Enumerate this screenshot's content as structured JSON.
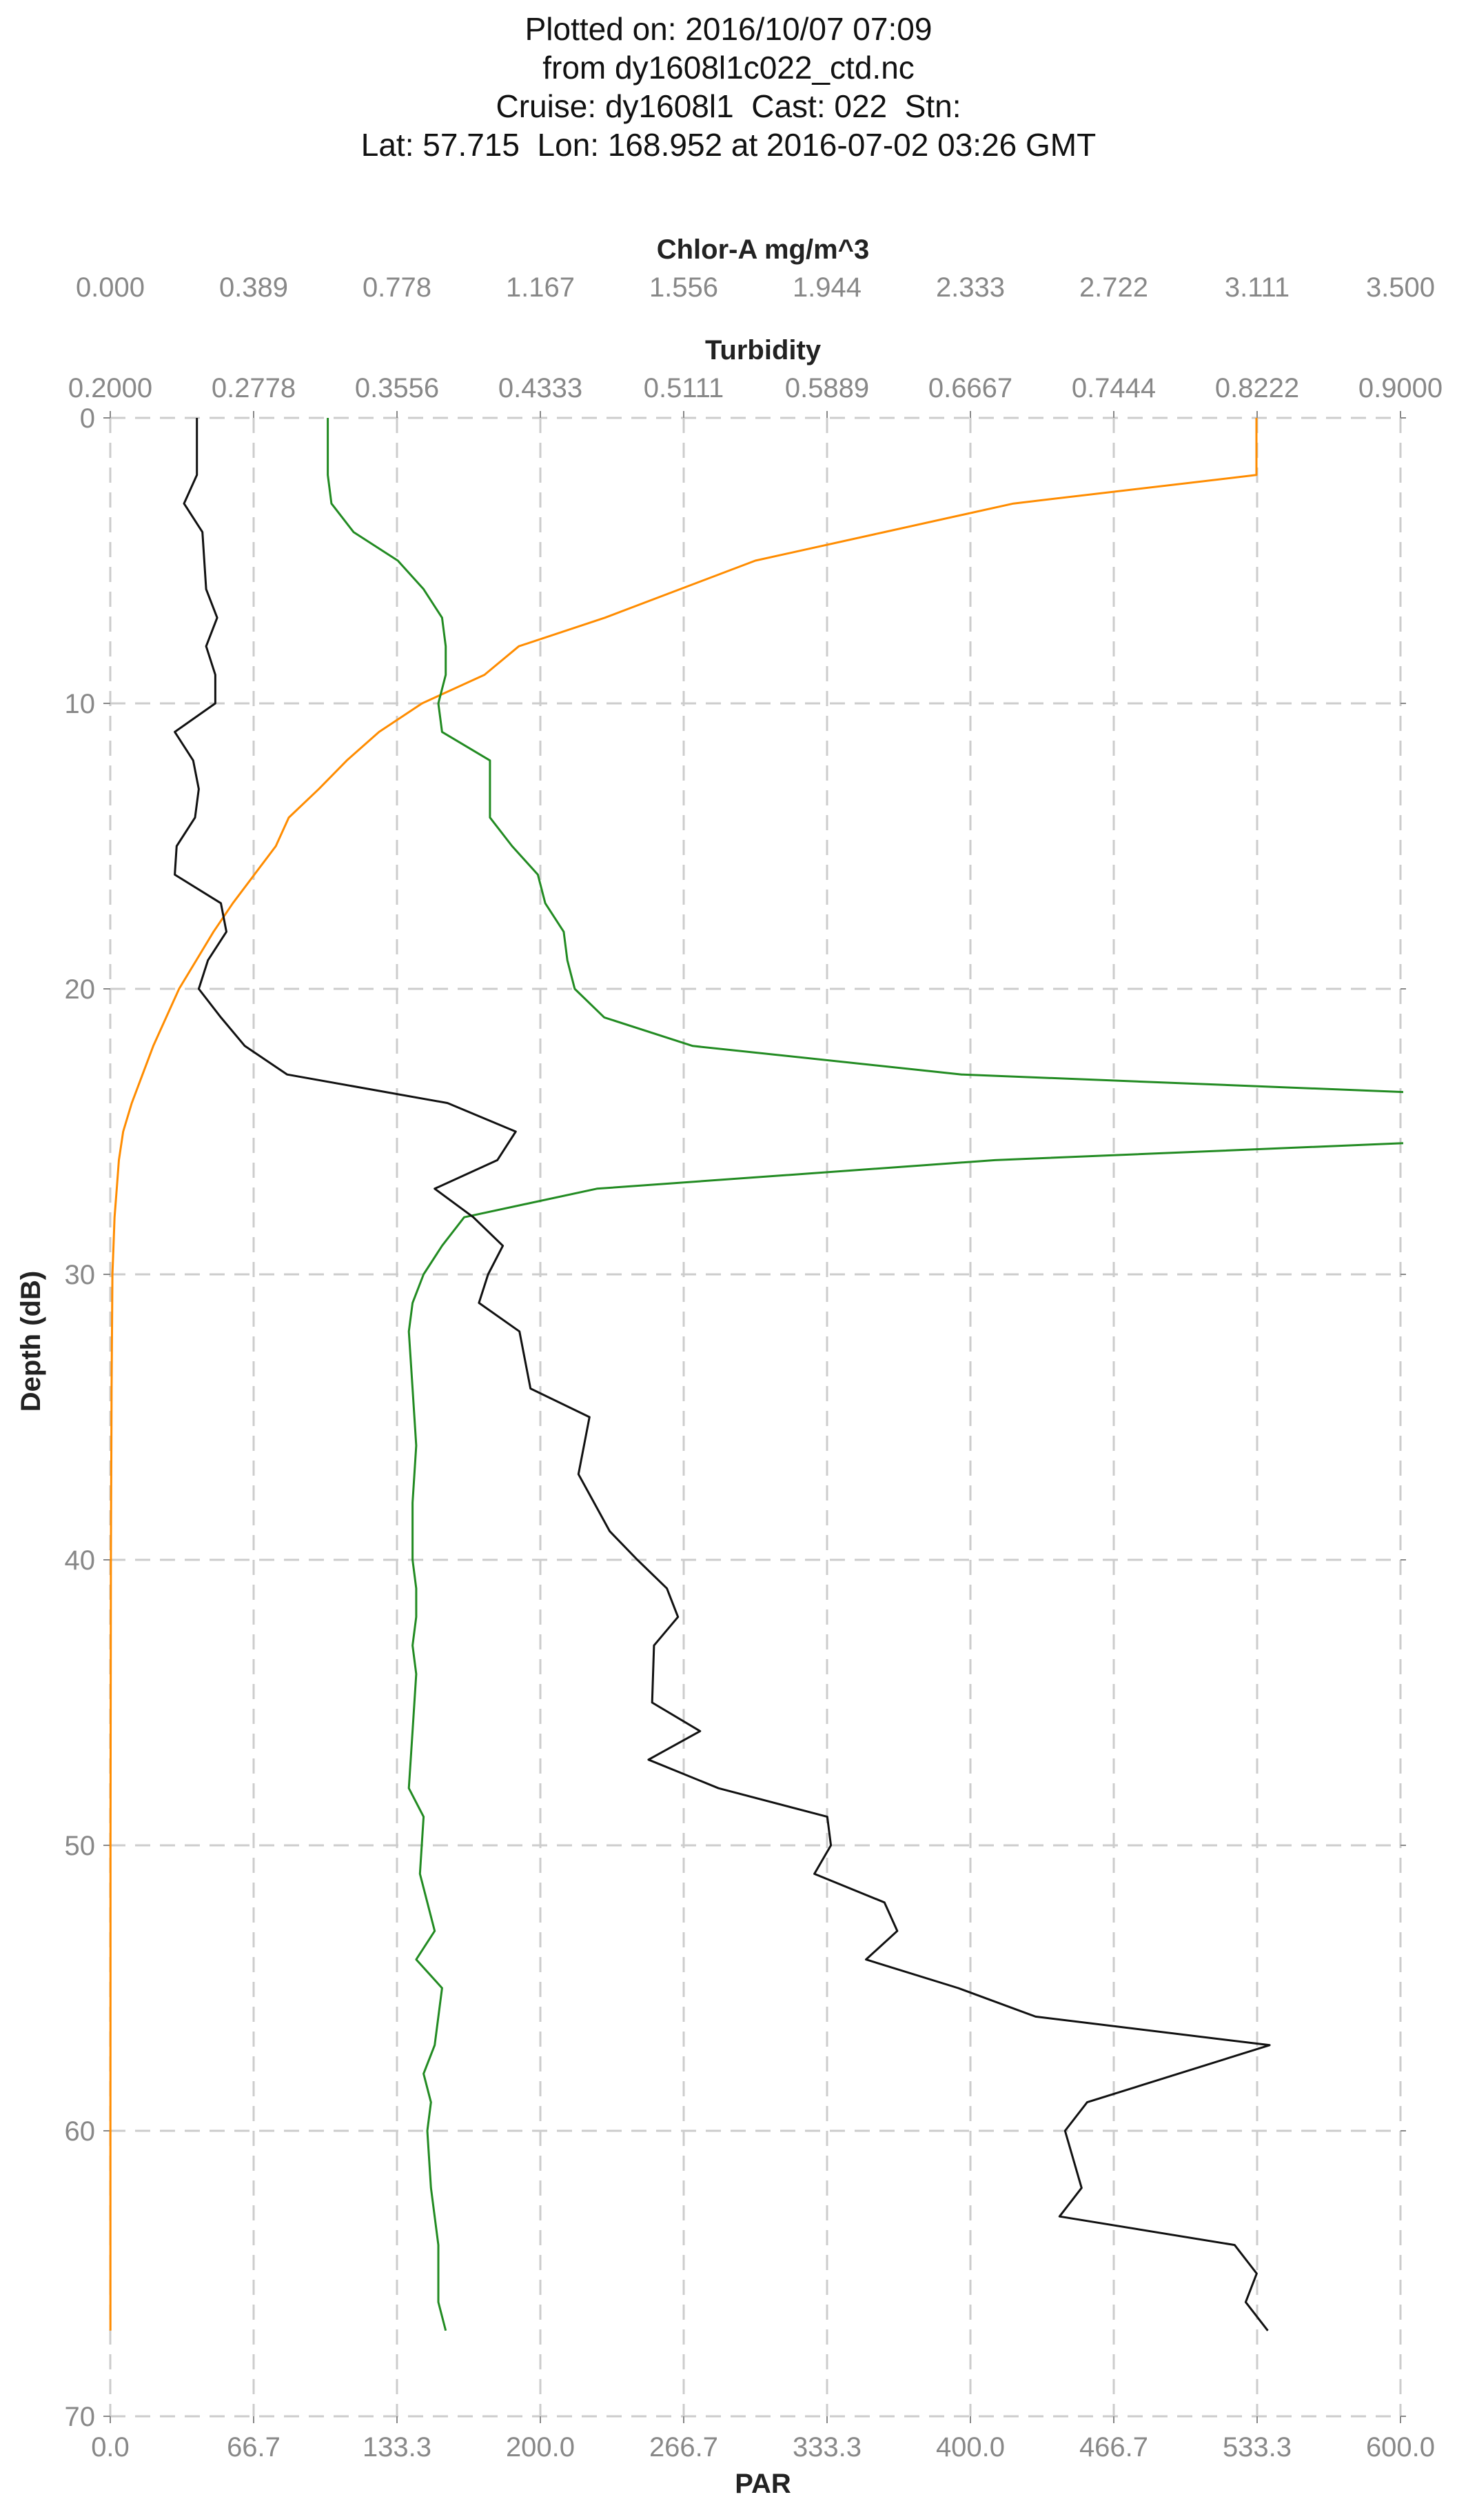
{
  "title_lines": [
    "Plotted on: 2016/10/07 07:09",
    "from dy1608l1c022_ctd.nc",
    "Cruise: dy1608l1  Cast: 022  Stn:",
    "Lat: 57.715  Lon: 168.952 at 2016-07-02 03:26 GMT"
  ],
  "colors": {
    "par": "#ff8c00",
    "chlor": "#228b22",
    "turbidity": "#111111",
    "grid": "#cccccc"
  },
  "chart_data": {
    "type": "line",
    "grid": true,
    "y_axis": {
      "label": "Depth (dB)",
      "range": [
        0,
        70
      ],
      "inverted": true,
      "ticks": [
        "0",
        "10",
        "20",
        "30",
        "40",
        "50",
        "60",
        "70"
      ]
    },
    "x_axes": [
      {
        "key": "par",
        "label": "PAR",
        "position": "bottom",
        "range": [
          0,
          600
        ],
        "ticks": [
          "0.0",
          "66.7",
          "133.3",
          "200.0",
          "266.7",
          "333.3",
          "400.0",
          "466.7",
          "533.3",
          "600.0"
        ]
      },
      {
        "key": "chlor",
        "label": "Chlor-A mg/m^3",
        "position": "top",
        "range": [
          0,
          3.5
        ],
        "ticks": [
          "0.000",
          "0.389",
          "0.778",
          "1.167",
          "1.556",
          "1.944",
          "2.333",
          "2.722",
          "3.111",
          "3.500"
        ]
      },
      {
        "key": "turbidity",
        "label": "Turbidity",
        "position": "top",
        "range": [
          0.2,
          0.9
        ],
        "ticks": [
          "0.2000",
          "0.2778",
          "0.3556",
          "0.4333",
          "0.5111",
          "0.5889",
          "0.6667",
          "0.7444",
          "0.8222",
          "0.9000"
        ]
      }
    ],
    "series": [
      {
        "key": "par",
        "axis": "par",
        "color": "#ff8c00",
        "points": [
          [
            533,
            0
          ],
          [
            533,
            2
          ],
          [
            420,
            3
          ],
          [
            360,
            4
          ],
          [
            300,
            5
          ],
          [
            265,
            6
          ],
          [
            230,
            7
          ],
          [
            190,
            8
          ],
          [
            174,
            9
          ],
          [
            145,
            10
          ],
          [
            125,
            11
          ],
          [
            110,
            12
          ],
          [
            97,
            13
          ],
          [
            83,
            14
          ],
          [
            77,
            15
          ],
          [
            67,
            16
          ],
          [
            57,
            17
          ],
          [
            48,
            18
          ],
          [
            40,
            19
          ],
          [
            32,
            20
          ],
          [
            26,
            21
          ],
          [
            20,
            22
          ],
          [
            15,
            23
          ],
          [
            10,
            24
          ],
          [
            6,
            25
          ],
          [
            4,
            26
          ],
          [
            3,
            27
          ],
          [
            2,
            28
          ],
          [
            1.5,
            29
          ],
          [
            1,
            30
          ],
          [
            0.8,
            32
          ],
          [
            0.6,
            34
          ],
          [
            0.5,
            36
          ],
          [
            0.4,
            38
          ],
          [
            0.3,
            40
          ],
          [
            0.2,
            45
          ],
          [
            0.1,
            50
          ],
          [
            0.1,
            55
          ],
          [
            0.05,
            60
          ],
          [
            0.05,
            65
          ],
          [
            0.05,
            67
          ]
        ]
      },
      {
        "key": "chlor",
        "axis": "chlor",
        "color": "#228b22",
        "points": [
          [
            0.59,
            0
          ],
          [
            0.59,
            2
          ],
          [
            0.6,
            3
          ],
          [
            0.66,
            4
          ],
          [
            0.78,
            5
          ],
          [
            0.85,
            6
          ],
          [
            0.9,
            7
          ],
          [
            0.91,
            8
          ],
          [
            0.91,
            9
          ],
          [
            0.89,
            10
          ],
          [
            0.9,
            11
          ],
          [
            1.03,
            12
          ],
          [
            1.03,
            13
          ],
          [
            1.03,
            14
          ],
          [
            1.09,
            15
          ],
          [
            1.16,
            16
          ],
          [
            1.18,
            17
          ],
          [
            1.23,
            18
          ],
          [
            1.24,
            19
          ],
          [
            1.26,
            20
          ],
          [
            1.34,
            21
          ],
          [
            1.58,
            22
          ],
          [
            2.31,
            23
          ],
          [
            4.26,
            24
          ],
          [
            4.26,
            25
          ],
          [
            2.4,
            26
          ],
          [
            1.32,
            27
          ],
          [
            0.96,
            28
          ],
          [
            0.9,
            29
          ],
          [
            0.85,
            30
          ],
          [
            0.82,
            31
          ],
          [
            0.81,
            32
          ],
          [
            0.82,
            34
          ],
          [
            0.83,
            36
          ],
          [
            0.82,
            38
          ],
          [
            0.82,
            40
          ],
          [
            0.83,
            41
          ],
          [
            0.83,
            42
          ],
          [
            0.82,
            43
          ],
          [
            0.83,
            44
          ],
          [
            0.82,
            46
          ],
          [
            0.81,
            48
          ],
          [
            0.85,
            49
          ],
          [
            0.84,
            51
          ],
          [
            0.88,
            53
          ],
          [
            0.83,
            54
          ],
          [
            0.9,
            55
          ],
          [
            0.88,
            57
          ],
          [
            0.85,
            58
          ],
          [
            0.87,
            59
          ],
          [
            0.86,
            60
          ],
          [
            0.87,
            62
          ],
          [
            0.89,
            64
          ],
          [
            0.89,
            66
          ],
          [
            0.91,
            67
          ]
        ]
      },
      {
        "key": "turbidity",
        "axis": "turbidity",
        "color": "#111111",
        "points": [
          [
            0.247,
            0
          ],
          [
            0.247,
            2
          ],
          [
            0.24,
            3
          ],
          [
            0.25,
            4
          ],
          [
            0.252,
            6
          ],
          [
            0.258,
            7
          ],
          [
            0.252,
            8
          ],
          [
            0.257,
            9
          ],
          [
            0.257,
            10
          ],
          [
            0.235,
            11
          ],
          [
            0.245,
            12
          ],
          [
            0.248,
            13
          ],
          [
            0.246,
            14
          ],
          [
            0.236,
            15
          ],
          [
            0.235,
            16
          ],
          [
            0.26,
            17
          ],
          [
            0.263,
            18
          ],
          [
            0.253,
            19
          ],
          [
            0.248,
            20
          ],
          [
            0.26,
            21
          ],
          [
            0.273,
            22
          ],
          [
            0.296,
            23
          ],
          [
            0.383,
            24
          ],
          [
            0.42,
            25
          ],
          [
            0.41,
            26
          ],
          [
            0.376,
            27
          ],
          [
            0.397,
            28
          ],
          [
            0.413,
            29
          ],
          [
            0.405,
            30
          ],
          [
            0.4,
            31
          ],
          [
            0.422,
            32
          ],
          [
            0.428,
            34
          ],
          [
            0.46,
            35
          ],
          [
            0.454,
            37
          ],
          [
            0.471,
            39
          ],
          [
            0.486,
            40
          ],
          [
            0.502,
            41
          ],
          [
            0.508,
            42
          ],
          [
            0.495,
            43
          ],
          [
            0.494,
            45
          ],
          [
            0.52,
            46
          ],
          [
            0.492,
            47
          ],
          [
            0.53,
            48
          ],
          [
            0.589,
            49
          ],
          [
            0.591,
            50
          ],
          [
            0.582,
            51
          ],
          [
            0.62,
            52
          ],
          [
            0.627,
            53
          ],
          [
            0.61,
            54
          ],
          [
            0.66,
            55
          ],
          [
            0.702,
            56
          ],
          [
            0.829,
            57
          ],
          [
            0.73,
            59
          ],
          [
            0.718,
            60
          ],
          [
            0.727,
            62
          ],
          [
            0.715,
            63
          ],
          [
            0.81,
            64
          ],
          [
            0.822,
            65
          ],
          [
            0.816,
            66
          ],
          [
            0.828,
            67
          ]
        ]
      }
    ]
  }
}
